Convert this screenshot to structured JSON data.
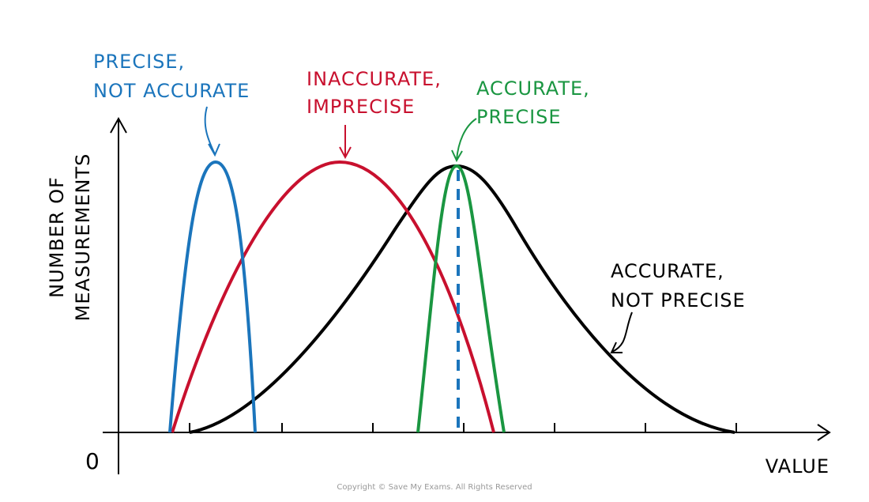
{
  "axes": {
    "y_label": [
      "NUMBER OF",
      "MEASUREMENTS"
    ],
    "x_label": "VALUE",
    "origin": "0"
  },
  "curves": [
    {
      "label": [
        "PRECISE,",
        "NOT ACCURATE"
      ],
      "color": "#1b75bc"
    },
    {
      "label": [
        "INACCURATE,",
        "IMPRECISE"
      ],
      "color": "#c8102e"
    },
    {
      "label": [
        "ACCURATE,",
        "PRECISE"
      ],
      "color": "#1a9641"
    },
    {
      "label": [
        "ACCURATE,",
        "NOT PRECISE"
      ],
      "color": "#000000"
    }
  ],
  "copyright": "Copyright © Save My Exams. All Rights Reserved"
}
